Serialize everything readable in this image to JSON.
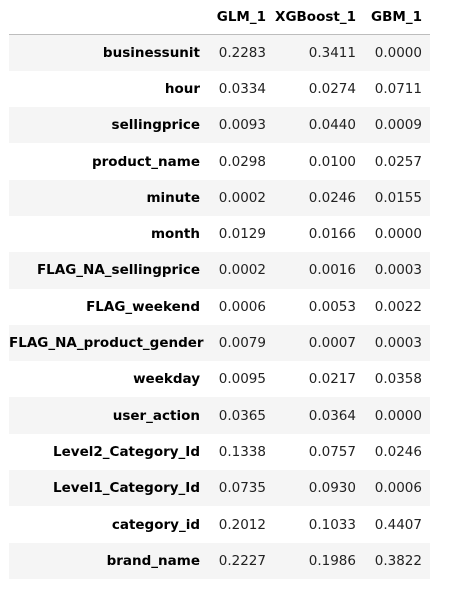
{
  "table": {
    "columns": [
      "",
      "GLM_1",
      "XGBoost_1",
      "GBM_1"
    ],
    "rows": [
      {
        "index": "businessunit",
        "values": [
          "0.2283",
          "0.3411",
          "0.0000"
        ]
      },
      {
        "index": "hour",
        "values": [
          "0.0334",
          "0.0274",
          "0.0711"
        ]
      },
      {
        "index": "sellingprice",
        "values": [
          "0.0093",
          "0.0440",
          "0.0009"
        ]
      },
      {
        "index": "product_name",
        "values": [
          "0.0298",
          "0.0100",
          "0.0257"
        ]
      },
      {
        "index": "minute",
        "values": [
          "0.0002",
          "0.0246",
          "0.0155"
        ]
      },
      {
        "index": "month",
        "values": [
          "0.0129",
          "0.0166",
          "0.0000"
        ]
      },
      {
        "index": "FLAG_NA_sellingprice",
        "values": [
          "0.0002",
          "0.0016",
          "0.0003"
        ]
      },
      {
        "index": "FLAG_weekend",
        "values": [
          "0.0006",
          "0.0053",
          "0.0022"
        ]
      },
      {
        "index": "FLAG_NA_product_gender",
        "values": [
          "0.0079",
          "0.0007",
          "0.0003"
        ]
      },
      {
        "index": "weekday",
        "values": [
          "0.0095",
          "0.0217",
          "0.0358"
        ]
      },
      {
        "index": "user_action",
        "values": [
          "0.0365",
          "0.0364",
          "0.0000"
        ]
      },
      {
        "index": "Level2_Category_Id",
        "values": [
          "0.1338",
          "0.0757",
          "0.0246"
        ]
      },
      {
        "index": "Level1_Category_Id",
        "values": [
          "0.0735",
          "0.0930",
          "0.0006"
        ]
      },
      {
        "index": "category_id",
        "values": [
          "0.2012",
          "0.1033",
          "0.4407"
        ]
      },
      {
        "index": "brand_name",
        "values": [
          "0.2227",
          "0.1986",
          "0.3822"
        ]
      }
    ]
  }
}
